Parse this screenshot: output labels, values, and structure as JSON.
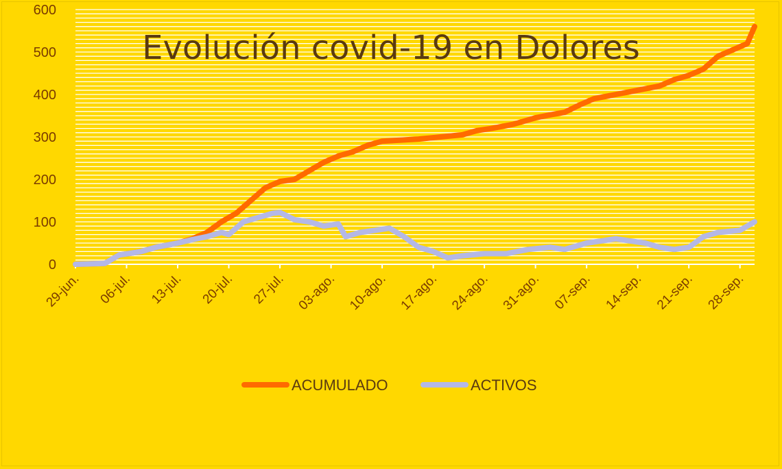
{
  "chart_data": {
    "type": "line",
    "title": "Evolución covid-19 en Dolores",
    "xlabel": "",
    "ylabel": "",
    "ylim": [
      0,
      600
    ],
    "yticks": [
      0,
      100,
      200,
      300,
      400,
      500,
      600
    ],
    "x_tick_labels": [
      "29-jun.",
      "06-jul.",
      "13-jul.",
      "20-jul.",
      "27-jul.",
      "03-ago.",
      "10-ago.",
      "17-ago.",
      "24-ago.",
      "31-ago.",
      "07-sep.",
      "14-sep.",
      "21-sep.",
      "28-sep."
    ],
    "x_start": "2020-06-29",
    "x_end": "2020-09-30",
    "grid": true,
    "legend_position": "bottom",
    "series": [
      {
        "name": "ACUMULADO",
        "color": "#ff6a00",
        "points": [
          [
            "2020-06-29",
            0
          ],
          [
            "2020-07-03",
            2
          ],
          [
            "2020-07-05",
            22
          ],
          [
            "2020-07-08",
            30
          ],
          [
            "2020-07-10",
            40
          ],
          [
            "2020-07-13",
            50
          ],
          [
            "2020-07-15",
            60
          ],
          [
            "2020-07-17",
            75
          ],
          [
            "2020-07-19",
            100
          ],
          [
            "2020-07-21",
            120
          ],
          [
            "2020-07-23",
            150
          ],
          [
            "2020-07-25",
            180
          ],
          [
            "2020-07-27",
            195
          ],
          [
            "2020-07-29",
            200
          ],
          [
            "2020-07-31",
            220
          ],
          [
            "2020-08-02",
            240
          ],
          [
            "2020-08-04",
            255
          ],
          [
            "2020-08-06",
            265
          ],
          [
            "2020-08-08",
            280
          ],
          [
            "2020-08-10",
            290
          ],
          [
            "2020-08-12",
            292
          ],
          [
            "2020-08-15",
            295
          ],
          [
            "2020-08-18",
            300
          ],
          [
            "2020-08-21",
            305
          ],
          [
            "2020-08-23",
            315
          ],
          [
            "2020-08-25",
            320
          ],
          [
            "2020-08-28",
            330
          ],
          [
            "2020-08-31",
            345
          ],
          [
            "2020-09-02",
            352
          ],
          [
            "2020-09-04",
            358
          ],
          [
            "2020-09-06",
            375
          ],
          [
            "2020-09-08",
            390
          ],
          [
            "2020-09-11",
            400
          ],
          [
            "2020-09-14",
            410
          ],
          [
            "2020-09-17",
            420
          ],
          [
            "2020-09-19",
            435
          ],
          [
            "2020-09-21",
            445
          ],
          [
            "2020-09-23",
            460
          ],
          [
            "2020-09-25",
            490
          ],
          [
            "2020-09-27",
            505
          ],
          [
            "2020-09-29",
            520
          ],
          [
            "2020-09-30",
            560
          ]
        ]
      },
      {
        "name": "ACTIVOS",
        "color": "#b4b8e6",
        "points": [
          [
            "2020-06-29",
            0
          ],
          [
            "2020-07-03",
            2
          ],
          [
            "2020-07-05",
            22
          ],
          [
            "2020-07-08",
            30
          ],
          [
            "2020-07-10",
            40
          ],
          [
            "2020-07-13",
            50
          ],
          [
            "2020-07-15",
            58
          ],
          [
            "2020-07-17",
            65
          ],
          [
            "2020-07-19",
            75
          ],
          [
            "2020-07-20",
            70
          ],
          [
            "2020-07-22",
            100
          ],
          [
            "2020-07-24",
            110
          ],
          [
            "2020-07-26",
            120
          ],
          [
            "2020-07-27",
            122
          ],
          [
            "2020-07-29",
            105
          ],
          [
            "2020-07-31",
            100
          ],
          [
            "2020-08-02",
            90
          ],
          [
            "2020-08-04",
            95
          ],
          [
            "2020-08-05",
            65
          ],
          [
            "2020-08-07",
            75
          ],
          [
            "2020-08-09",
            80
          ],
          [
            "2020-08-11",
            85
          ],
          [
            "2020-08-13",
            65
          ],
          [
            "2020-08-15",
            40
          ],
          [
            "2020-08-17",
            30
          ],
          [
            "2020-08-19",
            15
          ],
          [
            "2020-08-21",
            20
          ],
          [
            "2020-08-24",
            25
          ],
          [
            "2020-08-27",
            25
          ],
          [
            "2020-08-30",
            35
          ],
          [
            "2020-09-02",
            40
          ],
          [
            "2020-09-04",
            35
          ],
          [
            "2020-09-07",
            50
          ],
          [
            "2020-09-09",
            55
          ],
          [
            "2020-09-11",
            60
          ],
          [
            "2020-09-13",
            55
          ],
          [
            "2020-09-15",
            50
          ],
          [
            "2020-09-17",
            40
          ],
          [
            "2020-09-19",
            35
          ],
          [
            "2020-09-21",
            40
          ],
          [
            "2020-09-23",
            65
          ],
          [
            "2020-09-25",
            75
          ],
          [
            "2020-09-28",
            80
          ],
          [
            "2020-09-30",
            100
          ]
        ]
      }
    ]
  }
}
